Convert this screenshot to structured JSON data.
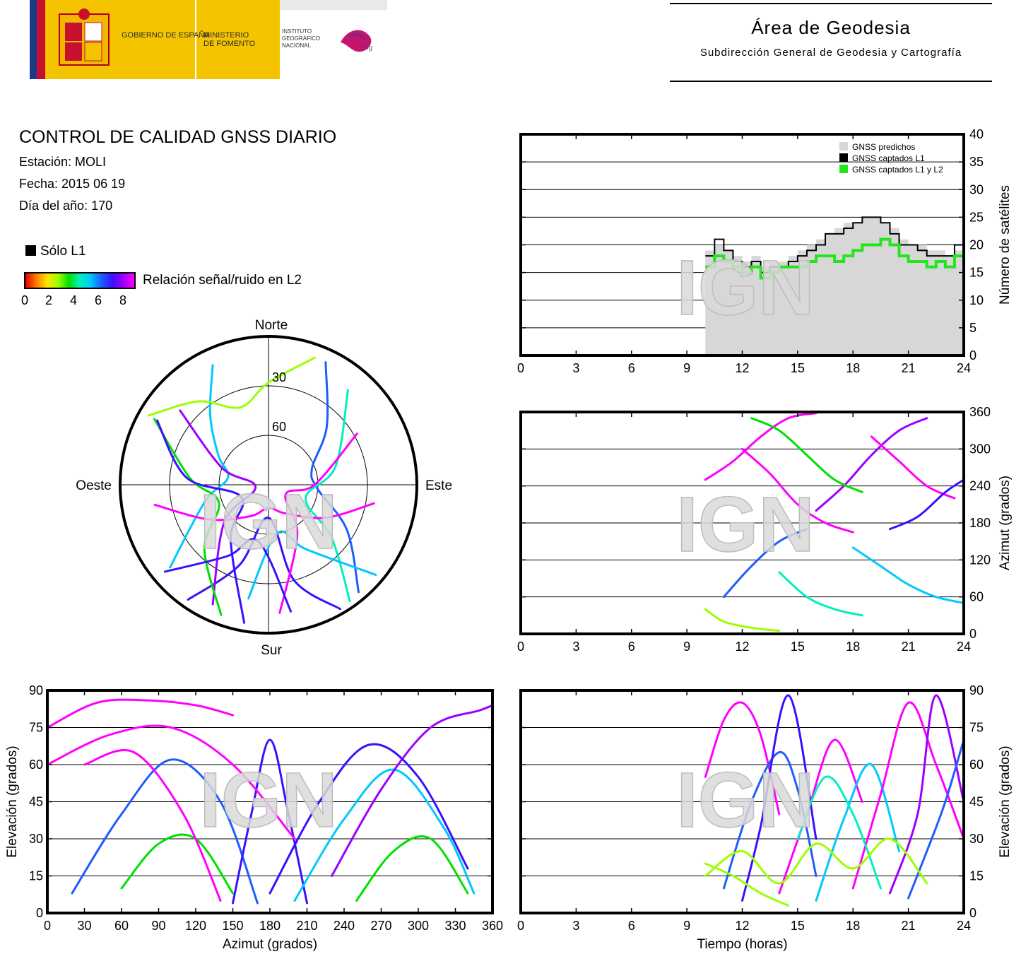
{
  "header": {
    "logos": {
      "gobierno": "GOBIERNO DE ESPAÑA",
      "ministerio": "MINISTERIO DE FOMENTO",
      "instituto": "INSTITUTO GEOGRÁFICO NACIONAL",
      "cnig": "cnig"
    },
    "area_title": "Área de Geodesia",
    "area_subtitle": "Subdirección General de Geodesia y Cartografía"
  },
  "report": {
    "title": "CONTROL DE CALIDAD GNSS DIARIO",
    "station": "Estación: MOLI",
    "date": "Fecha: 2015 06 19",
    "doy": "Día del año: 170"
  },
  "legend": {
    "l1_only": "Sólo L1",
    "snr_label": "Relación señal/ruido en L2",
    "snr_ticks": [
      "0",
      "2",
      "4",
      "6",
      "8"
    ],
    "snr_colors": [
      "#e00000",
      "#ff7a00",
      "#ffe600",
      "#9cff00",
      "#00e000",
      "#00f0c0",
      "#00c8ff",
      "#1f5cff",
      "#3a10ff",
      "#9c00ff",
      "#ff00ff"
    ]
  },
  "watermark": "IGN",
  "chart_data": [
    {
      "id": "skyplot",
      "type": "polar",
      "directions": {
        "north": "Norte",
        "south": "Sur",
        "east": "Este",
        "west": "Oeste"
      },
      "elevation_rings": [
        "30",
        "60"
      ],
      "tracks": [
        {
          "az": [
            335,
            320,
            300,
            280,
            255,
            230
          ],
          "el": [
            10,
            35,
            55,
            65,
            50,
            12
          ],
          "snr": 5.2
        },
        {
          "az": [
            25,
            45,
            70,
            95,
            120,
            140
          ],
          "el": [
            8,
            40,
            62,
            60,
            35,
            5
          ],
          "snr": 6.0
        },
        {
          "az": [
            150,
            165,
            180,
            200,
            215
          ],
          "el": [
            3,
            30,
            70,
            38,
            5
          ],
          "snr": 7.6
        },
        {
          "az": [
            310,
            290,
            260,
            230,
            205
          ],
          "el": [
            20,
            60,
            82,
            55,
            10
          ],
          "snr": 8.2
        },
        {
          "az": [
            40,
            75,
            110,
            130,
            145
          ],
          "el": [
            15,
            48,
            66,
            40,
            4
          ],
          "snr": 4.1
        },
        {
          "az": [
            200,
            225,
            250,
            275,
            300
          ],
          "el": [
            6,
            35,
            58,
            42,
            10
          ],
          "snr": 3.3
        },
        {
          "az": [
            60,
            90,
            120,
            150,
            175
          ],
          "el": [
            28,
            62,
            78,
            55,
            12
          ],
          "snr": 8.6
        },
        {
          "az": [
            300,
            275,
            245,
            215,
            190
          ],
          "el": [
            12,
            40,
            72,
            50,
            5
          ],
          "snr": 6.8
        },
        {
          "az": [
            20,
            0,
            340,
            320,
            300
          ],
          "el": [
            8,
            28,
            40,
            24,
            6
          ],
          "snr": 2.4
        },
        {
          "az": [
            100,
            120,
            150,
            180,
            210,
            240,
            260
          ],
          "el": [
            25,
            50,
            70,
            76,
            68,
            48,
            20
          ],
          "snr": 8.8
        },
        {
          "az": [
            130,
            150,
            170,
            190
          ],
          "el": [
            5,
            45,
            60,
            20
          ],
          "snr": 5.6
        },
        {
          "az": [
            230,
            210,
            190,
            170
          ],
          "el": [
            8,
            40,
            55,
            12
          ],
          "snr": 7.1
        }
      ]
    },
    {
      "id": "num-satellites",
      "type": "step",
      "xlim": [
        0,
        24
      ],
      "ylim": [
        0,
        40
      ],
      "xticks": [
        "0",
        "3",
        "6",
        "9",
        "12",
        "15",
        "18",
        "21",
        "24"
      ],
      "yticks": [
        "0",
        "5",
        "10",
        "15",
        "20",
        "25",
        "30",
        "35",
        "40"
      ],
      "ylabel": "Número de satélites",
      "legend": [
        "GNSS predichos",
        "GNSS captados L1",
        "GNSS captados L1 y L2"
      ],
      "series_colors": [
        "#d7d7d7",
        "#000000",
        "#22e61a"
      ],
      "x": [
        10,
        10.5,
        11,
        11.5,
        12,
        12.5,
        13,
        13.5,
        14,
        14.5,
        15,
        15.5,
        16,
        16.5,
        17,
        17.5,
        18,
        18.5,
        19,
        19.5,
        20,
        20.5,
        21,
        21.5,
        22,
        22.5,
        23,
        23.5,
        24
      ],
      "predicted": [
        19,
        20,
        19,
        18,
        17,
        18,
        16,
        17,
        17,
        18,
        19,
        20,
        21,
        22,
        23,
        24,
        24,
        25,
        25,
        24,
        23,
        21,
        20,
        20,
        19,
        19,
        18,
        19,
        19
      ],
      "l1": [
        18,
        21,
        19,
        17,
        16,
        17,
        15,
        16,
        16,
        17,
        18,
        19,
        20,
        22,
        22,
        23,
        24,
        25,
        25,
        24,
        22,
        20,
        20,
        19,
        18,
        18,
        18,
        20,
        20
      ],
      "l1l2": [
        16,
        18,
        17,
        16,
        15,
        16,
        14,
        15,
        16,
        16,
        16,
        17,
        18,
        18,
        17,
        18,
        19,
        20,
        20,
        21,
        20,
        18,
        17,
        17,
        16,
        17,
        16,
        18,
        18
      ]
    },
    {
      "id": "azimuth-time",
      "type": "scatter",
      "xlim": [
        0,
        24
      ],
      "ylim": [
        0,
        360
      ],
      "xticks": [
        "0",
        "3",
        "6",
        "9",
        "12",
        "15",
        "18",
        "21",
        "24"
      ],
      "yticks": [
        "0",
        "60",
        "120",
        "180",
        "240",
        "300",
        "360"
      ],
      "ylabel": "Azimut (grados)",
      "tracks": [
        {
          "t": [
            10,
            11.5,
            13,
            14.5,
            16
          ],
          "az": [
            250,
            280,
            320,
            350,
            358
          ],
          "snr": 8.6
        },
        {
          "t": [
            11,
            12.5,
            14,
            15.5
          ],
          "az": [
            60,
            110,
            150,
            170
          ],
          "snr": 6.2
        },
        {
          "t": [
            12,
            13.5,
            15,
            16.5,
            18
          ],
          "az": [
            300,
            260,
            210,
            180,
            165
          ],
          "snr": 8.9
        },
        {
          "t": [
            14,
            15.5,
            17,
            18.5
          ],
          "az": [
            100,
            60,
            40,
            30
          ],
          "snr": 4.4
        },
        {
          "t": [
            16,
            17.5,
            19,
            20.5,
            22
          ],
          "az": [
            200,
            240,
            290,
            330,
            350
          ],
          "snr": 7.8
        },
        {
          "t": [
            18,
            19.5,
            21,
            22.5,
            24
          ],
          "az": [
            140,
            110,
            80,
            60,
            50
          ],
          "snr": 5.6
        },
        {
          "t": [
            19,
            20.5,
            22,
            23.5
          ],
          "az": [
            320,
            280,
            240,
            220
          ],
          "snr": 8.7
        },
        {
          "t": [
            10,
            11,
            12.5,
            14
          ],
          "az": [
            40,
            20,
            10,
            5
          ],
          "snr": 2.8
        },
        {
          "t": [
            20,
            21.5,
            23,
            24
          ],
          "az": [
            170,
            190,
            230,
            250
          ],
          "snr": 6.9
        },
        {
          "t": [
            12.5,
            14,
            15.5,
            17,
            18.5
          ],
          "az": [
            350,
            330,
            290,
            250,
            230
          ],
          "snr": 3.6
        }
      ]
    },
    {
      "id": "elevation-azimuth",
      "type": "scatter",
      "xlim": [
        0,
        360
      ],
      "ylim": [
        0,
        90
      ],
      "xticks": [
        "0",
        "30",
        "60",
        "90",
        "120",
        "150",
        "180",
        "210",
        "240",
        "270",
        "300",
        "330",
        "360"
      ],
      "yticks": [
        "0",
        "15",
        "30",
        "45",
        "60",
        "75",
        "90"
      ],
      "xlabel": "Azimut (grados)",
      "ylabel": "Elevación (grados)",
      "tracks": [
        {
          "az": [
            0,
            40,
            80,
            120,
            150
          ],
          "el": [
            75,
            85,
            86,
            84,
            80
          ],
          "snr": 8.8
        },
        {
          "az": [
            20,
            60,
            100,
            140,
            170
          ],
          "el": [
            8,
            40,
            62,
            45,
            4
          ],
          "snr": 6.0
        },
        {
          "az": [
            150,
            165,
            180,
            195,
            210
          ],
          "el": [
            4,
            40,
            70,
            40,
            4
          ],
          "snr": 7.6
        },
        {
          "az": [
            200,
            240,
            280,
            320,
            345
          ],
          "el": [
            5,
            38,
            58,
            35,
            8
          ],
          "snr": 5.1
        },
        {
          "az": [
            0,
            50,
            100,
            150,
            200
          ],
          "el": [
            60,
            72,
            75,
            60,
            30
          ],
          "snr": 8.9
        },
        {
          "az": [
            230,
            270,
            310,
            350,
            360
          ],
          "el": [
            15,
            50,
            75,
            82,
            84
          ],
          "snr": 8.3
        },
        {
          "az": [
            60,
            90,
            120,
            150
          ],
          "el": [
            10,
            28,
            30,
            8
          ],
          "snr": 3.3
        },
        {
          "az": [
            30,
            70,
            110,
            140
          ],
          "el": [
            60,
            65,
            40,
            5
          ],
          "snr": 8.6
        },
        {
          "az": [
            250,
            280,
            310,
            340
          ],
          "el": [
            5,
            25,
            30,
            8
          ],
          "snr": 4.0
        },
        {
          "az": [
            180,
            220,
            260,
            300,
            340
          ],
          "el": [
            8,
            45,
            68,
            55,
            18
          ],
          "snr": 7.0
        }
      ]
    },
    {
      "id": "elevation-time",
      "type": "scatter",
      "xlim": [
        0,
        24
      ],
      "ylim": [
        0,
        90
      ],
      "xticks": [
        "0",
        "3",
        "6",
        "9",
        "12",
        "15",
        "18",
        "21",
        "24"
      ],
      "yticks": [
        "0",
        "15",
        "30",
        "45",
        "60",
        "75",
        "90"
      ],
      "xlabel": "Tiempo (horas)",
      "ylabel": "Elevación (grados)",
      "tracks": [
        {
          "t": [
            10,
            11,
            12,
            13,
            14
          ],
          "el": [
            55,
            78,
            85,
            72,
            40
          ],
          "snr": 8.8
        },
        {
          "t": [
            11,
            12.5,
            14,
            15,
            16
          ],
          "el": [
            10,
            45,
            65,
            50,
            15
          ],
          "snr": 6.2
        },
        {
          "t": [
            12,
            13,
            14.5,
            16
          ],
          "el": [
            5,
            35,
            88,
            30
          ],
          "snr": 7.5
        },
        {
          "t": [
            14,
            15.5,
            17,
            18.5
          ],
          "el": [
            8,
            40,
            70,
            45
          ],
          "snr": 8.9
        },
        {
          "t": [
            16,
            17.5,
            19,
            20.5
          ],
          "el": [
            5,
            38,
            60,
            25
          ],
          "snr": 5.0
        },
        {
          "t": [
            18,
            19.5,
            21,
            22.5,
            24
          ],
          "el": [
            10,
            48,
            85,
            60,
            30
          ],
          "snr": 8.6
        },
        {
          "t": [
            20,
            21.5,
            22.5,
            24
          ],
          "el": [
            8,
            40,
            88,
            45
          ],
          "snr": 7.9
        },
        {
          "t": [
            10,
            11.5,
            13,
            14.5
          ],
          "el": [
            20,
            15,
            8,
            3
          ],
          "snr": 2.8
        },
        {
          "t": [
            15,
            16.5,
            18,
            19.5
          ],
          "el": [
            30,
            55,
            40,
            10
          ],
          "snr": 4.4
        },
        {
          "t": [
            21,
            22,
            23,
            24
          ],
          "el": [
            6,
            25,
            45,
            70
          ],
          "snr": 6.7
        },
        {
          "t": [
            10,
            12,
            14,
            16,
            18,
            20,
            22
          ],
          "el": [
            15,
            25,
            12,
            28,
            18,
            30,
            12
          ],
          "snr": 3.0
        }
      ]
    }
  ]
}
